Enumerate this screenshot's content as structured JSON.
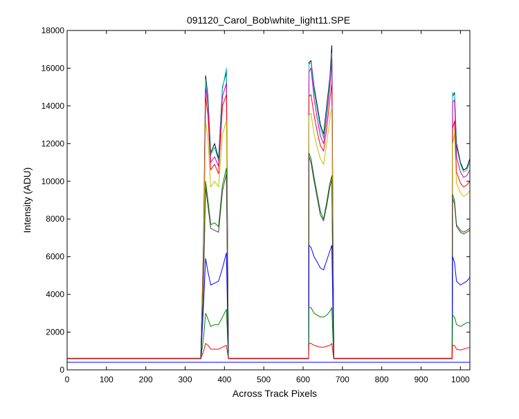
{
  "chart_data": {
    "type": "line",
    "title": "091120_Carol_Bob\\white_light11.SPE",
    "xlabel": "Across Track Pixels",
    "ylabel": "Intensity (ADU)",
    "xlim": [
      0,
      1024
    ],
    "ylim": [
      0,
      18000
    ],
    "xticks": [
      0,
      100,
      200,
      300,
      400,
      500,
      600,
      700,
      800,
      900,
      1000
    ],
    "yticks": [
      0,
      2000,
      4000,
      6000,
      8000,
      10000,
      12000,
      14000,
      16000,
      18000
    ],
    "grid": false,
    "legend": "none",
    "baseline_colors": {
      "cyan": "#00bfbf",
      "blue": "#0000ff"
    },
    "series": [
      {
        "color": "#000000",
        "values": [
          600,
          600,
          600,
          600,
          600,
          600,
          600,
          600,
          7000,
          15600,
          14500,
          11500,
          12000,
          11200,
          15000,
          15800,
          600,
          600,
          600,
          600,
          600,
          600,
          600,
          600,
          600,
          600,
          600,
          600,
          600,
          600,
          16300,
          16400,
          15000,
          14000,
          13000,
          12500,
          14000,
          15500,
          17200,
          600,
          600,
          600,
          600,
          600,
          600,
          600,
          600,
          600,
          600,
          600,
          600,
          600,
          600,
          600,
          600,
          600,
          600,
          600,
          600,
          600,
          600,
          600,
          600,
          14500,
          14700,
          12000,
          11000,
          10600,
          10700,
          11200
        ]
      },
      {
        "color": "#00bfbf",
        "values": [
          620,
          620,
          620,
          620,
          620,
          620,
          620,
          620,
          7000,
          15400,
          14300,
          11400,
          11800,
          11100,
          14900,
          16000,
          620,
          620,
          620,
          620,
          620,
          620,
          620,
          620,
          620,
          620,
          620,
          620,
          620,
          620,
          16200,
          16300,
          14800,
          13800,
          12800,
          12300,
          13800,
          15300,
          16800,
          620,
          620,
          620,
          620,
          620,
          620,
          620,
          620,
          620,
          620,
          620,
          620,
          620,
          620,
          620,
          620,
          620,
          620,
          620,
          620,
          620,
          620,
          620,
          620,
          14700,
          14600,
          11800,
          10900,
          10500,
          10600,
          11000
        ]
      },
      {
        "color": "#bf00bf",
        "values": [
          600,
          600,
          600,
          600,
          600,
          600,
          600,
          600,
          6800,
          15000,
          14000,
          11000,
          11300,
          10800,
          14500,
          15200,
          600,
          600,
          600,
          600,
          600,
          600,
          600,
          600,
          600,
          600,
          600,
          600,
          600,
          600,
          15800,
          16000,
          14400,
          13300,
          12400,
          12000,
          13400,
          15000,
          16500,
          600,
          600,
          600,
          600,
          600,
          600,
          600,
          600,
          600,
          600,
          600,
          600,
          600,
          600,
          600,
          600,
          600,
          600,
          600,
          600,
          600,
          600,
          600,
          600,
          14200,
          14300,
          11300,
          10500,
          10200,
          10300,
          10600
        ]
      },
      {
        "color": "#ff0000",
        "values": [
          600,
          600,
          600,
          600,
          600,
          600,
          600,
          600,
          6500,
          14500,
          13500,
          10600,
          10900,
          10400,
          14000,
          14600,
          600,
          600,
          600,
          600,
          600,
          600,
          600,
          600,
          600,
          600,
          600,
          600,
          600,
          600,
          14500,
          14600,
          13500,
          12600,
          11900,
          11600,
          12800,
          14300,
          15200,
          600,
          600,
          600,
          600,
          600,
          600,
          600,
          600,
          600,
          600,
          600,
          600,
          600,
          600,
          600,
          600,
          600,
          600,
          600,
          600,
          600,
          600,
          600,
          600,
          12800,
          13200,
          10500,
          9900,
          9700,
          9800,
          10000
        ]
      },
      {
        "color": "#bfbf00",
        "values": [
          600,
          600,
          600,
          600,
          600,
          600,
          600,
          600,
          6000,
          13200,
          12200,
          9700,
          10000,
          9700,
          12500,
          13200,
          600,
          600,
          600,
          600,
          600,
          600,
          600,
          600,
          600,
          600,
          600,
          600,
          600,
          600,
          13500,
          13600,
          12500,
          11800,
          11200,
          10900,
          12000,
          13300,
          14000,
          600,
          600,
          600,
          600,
          600,
          600,
          600,
          600,
          600,
          600,
          600,
          600,
          600,
          600,
          600,
          600,
          600,
          600,
          600,
          600,
          600,
          600,
          600,
          600,
          12000,
          12500,
          9900,
          9400,
          9200,
          9300,
          9500
        ]
      },
      {
        "color": "#008000",
        "values": [
          600,
          600,
          600,
          600,
          600,
          600,
          600,
          600,
          5000,
          10000,
          9000,
          7700,
          7800,
          7600,
          9800,
          10700,
          600,
          600,
          600,
          600,
          600,
          600,
          600,
          600,
          600,
          600,
          600,
          600,
          600,
          600,
          11500,
          11200,
          10200,
          9300,
          8400,
          8000,
          8900,
          9900,
          10300,
          600,
          600,
          600,
          600,
          600,
          600,
          600,
          600,
          600,
          600,
          600,
          600,
          600,
          600,
          600,
          600,
          600,
          600,
          600,
          600,
          600,
          600,
          600,
          600,
          9300,
          9000,
          7700,
          7400,
          7300,
          7400,
          7500
        ]
      },
      {
        "color": "#404040",
        "values": [
          600,
          600,
          600,
          600,
          600,
          600,
          600,
          600,
          4800,
          9700,
          8700,
          7500,
          7400,
          7300,
          9500,
          10400,
          600,
          600,
          600,
          600,
          600,
          600,
          600,
          600,
          600,
          600,
          600,
          600,
          600,
          600,
          11300,
          11000,
          10000,
          9100,
          8200,
          7900,
          8700,
          9700,
          10100,
          600,
          600,
          600,
          600,
          600,
          600,
          600,
          600,
          600,
          600,
          600,
          600,
          600,
          600,
          600,
          600,
          600,
          600,
          600,
          600,
          600,
          600,
          600,
          600,
          9100,
          8800,
          7600,
          7300,
          7200,
          7300,
          7400
        ]
      },
      {
        "color": "#0000ff",
        "values": [
          600,
          600,
          600,
          600,
          600,
          600,
          600,
          600,
          3500,
          5900,
          5200,
          4500,
          4600,
          4700,
          5400,
          6200,
          600,
          600,
          600,
          600,
          600,
          600,
          600,
          600,
          600,
          600,
          600,
          600,
          600,
          600,
          6600,
          6500,
          6000,
          5700,
          5400,
          5300,
          5800,
          6300,
          6600,
          600,
          600,
          600,
          600,
          600,
          600,
          600,
          600,
          600,
          600,
          600,
          600,
          600,
          600,
          600,
          600,
          600,
          600,
          600,
          600,
          600,
          600,
          600,
          600,
          6000,
          5700,
          4700,
          4500,
          4600,
          4700,
          4900
        ]
      },
      {
        "color": "#008000",
        "values": [
          600,
          600,
          600,
          600,
          600,
          600,
          600,
          600,
          1700,
          3000,
          2700,
          2300,
          2400,
          2400,
          2800,
          3200,
          600,
          600,
          600,
          600,
          600,
          600,
          600,
          600,
          600,
          600,
          600,
          600,
          600,
          600,
          3300,
          3300,
          3000,
          2900,
          2800,
          2800,
          2900,
          3100,
          3300,
          600,
          600,
          600,
          600,
          600,
          600,
          600,
          600,
          600,
          600,
          600,
          600,
          600,
          600,
          600,
          600,
          600,
          600,
          600,
          600,
          600,
          600,
          600,
          600,
          2900,
          2800,
          2400,
          2300,
          2400,
          2500,
          2500
        ]
      },
      {
        "color": "#ff0000",
        "values": [
          600,
          600,
          600,
          600,
          600,
          600,
          600,
          600,
          1000,
          1400,
          1300,
          1100,
          1100,
          1100,
          1200,
          1300,
          600,
          600,
          600,
          600,
          600,
          600,
          600,
          600,
          600,
          600,
          600,
          600,
          600,
          600,
          1400,
          1400,
          1300,
          1250,
          1200,
          1200,
          1250,
          1300,
          1400,
          600,
          600,
          600,
          600,
          600,
          600,
          600,
          600,
          600,
          600,
          600,
          600,
          600,
          600,
          600,
          600,
          600,
          600,
          600,
          600,
          600,
          600,
          600,
          600,
          1300,
          1300,
          1100,
          1050,
          1100,
          1150,
          1200
        ]
      },
      {
        "color": "#0000ff",
        "values": [
          400,
          400,
          400,
          400,
          400,
          400,
          400,
          400,
          400,
          400,
          400,
          400,
          400,
          400,
          400,
          400,
          400,
          400,
          400,
          400,
          400,
          400,
          400,
          400,
          400,
          400,
          400,
          400,
          400,
          400,
          400,
          400,
          400,
          400,
          400,
          400,
          400,
          400,
          400,
          400,
          400,
          400,
          400,
          400,
          400,
          400,
          400,
          400,
          400,
          400,
          400,
          400,
          400,
          400,
          400,
          400,
          400,
          400,
          400,
          400,
          400,
          400,
          400,
          400,
          400,
          400,
          400,
          400,
          400,
          400
        ]
      }
    ],
    "x": [
      0,
      50,
      100,
      150,
      200,
      250,
      300,
      340,
      347,
      352,
      358,
      365,
      375,
      385,
      395,
      405,
      410,
      430,
      460,
      490,
      520,
      550,
      580,
      600,
      608,
      610,
      611,
      612,
      613,
      614,
      615,
      620,
      628,
      636,
      644,
      652,
      660,
      668,
      673,
      678,
      690,
      720,
      750,
      780,
      810,
      840,
      870,
      900,
      930,
      950,
      960,
      965,
      968,
      970,
      971,
      972,
      973,
      974,
      975,
      976,
      977,
      978,
      979,
      980,
      985,
      990,
      1000,
      1008,
      1016,
      1024
    ]
  }
}
